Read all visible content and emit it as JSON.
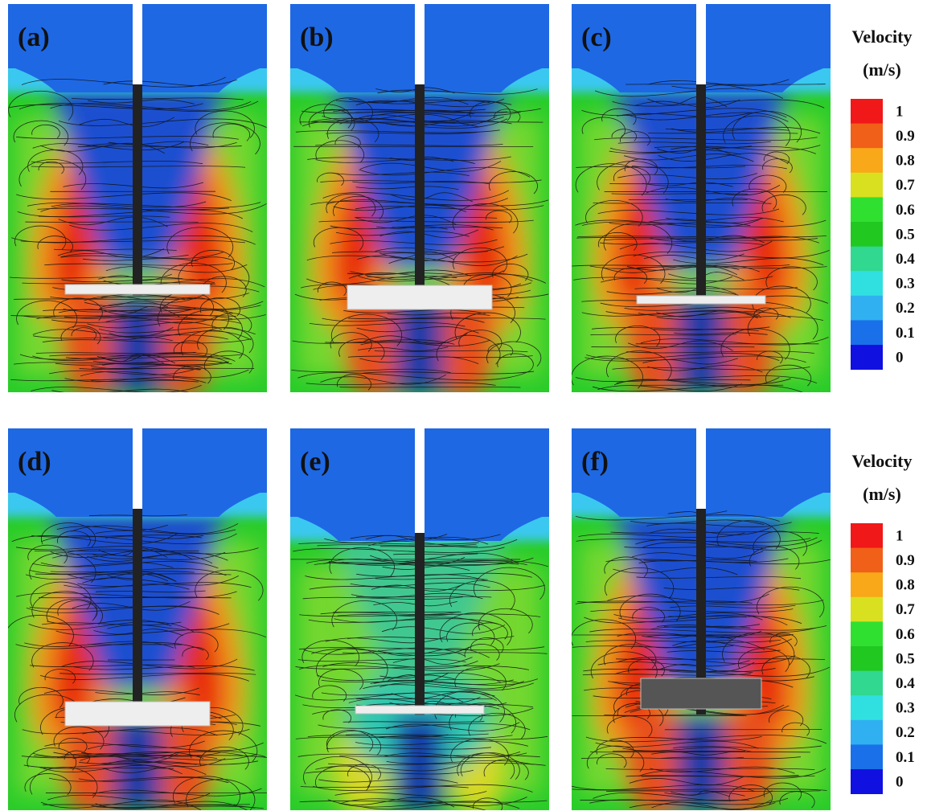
{
  "panels": [
    {
      "label": "(a)"
    },
    {
      "label": "(b)"
    },
    {
      "label": "(c)"
    },
    {
      "label": "(d)"
    },
    {
      "label": "(e)"
    },
    {
      "label": "(f)"
    }
  ],
  "legends": [
    {
      "title": "Velocity",
      "unit": "(m/s)",
      "labels": [
        "1",
        "0.9",
        "0.8",
        "0.7",
        "0.6",
        "0.5",
        "0.4",
        "0.3",
        "0.2",
        "0.1",
        "0"
      ]
    },
    {
      "title": "Velocity",
      "unit": "(m/s)",
      "labels": [
        "1",
        "0.9",
        "0.8",
        "0.7",
        "0.6",
        "0.5",
        "0.4",
        "0.3",
        "0.2",
        "0.1",
        "0"
      ]
    }
  ]
}
